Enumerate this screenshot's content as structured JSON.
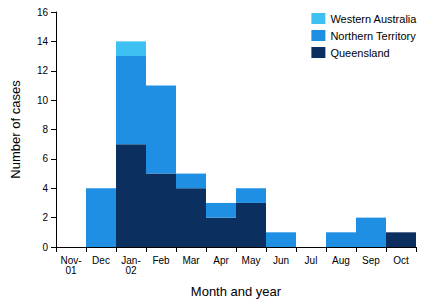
{
  "chart_data": {
    "type": "bar",
    "xlabel": "Month and year",
    "ylabel": "Number of cases",
    "categories": [
      "Nov-01",
      "Dec",
      "Jan-02",
      "Feb",
      "Mar",
      "Apr",
      "May",
      "Jun",
      "Jul",
      "Aug",
      "Sep",
      "Oct"
    ],
    "series": [
      {
        "name": "Queensland",
        "color": "#0b2f5e",
        "values": [
          0,
          0,
          7,
          5,
          4,
          2,
          3,
          0,
          0,
          0,
          0,
          1
        ]
      },
      {
        "name": "Northern Territory",
        "color": "#1e8fe3",
        "values": [
          0,
          4,
          6,
          6,
          1,
          1,
          1,
          1,
          0,
          1,
          2,
          0
        ]
      },
      {
        "name": "Western Australia",
        "color": "#3ec0f2",
        "values": [
          0,
          0,
          1,
          0,
          0,
          0,
          0,
          0,
          0,
          0,
          0,
          0
        ]
      }
    ],
    "stacked": true,
    "ylim": [
      0,
      16
    ],
    "yticks": [
      0,
      2,
      4,
      6,
      8,
      10,
      12,
      14,
      16
    ],
    "legend": "top-right",
    "grid": false
  }
}
